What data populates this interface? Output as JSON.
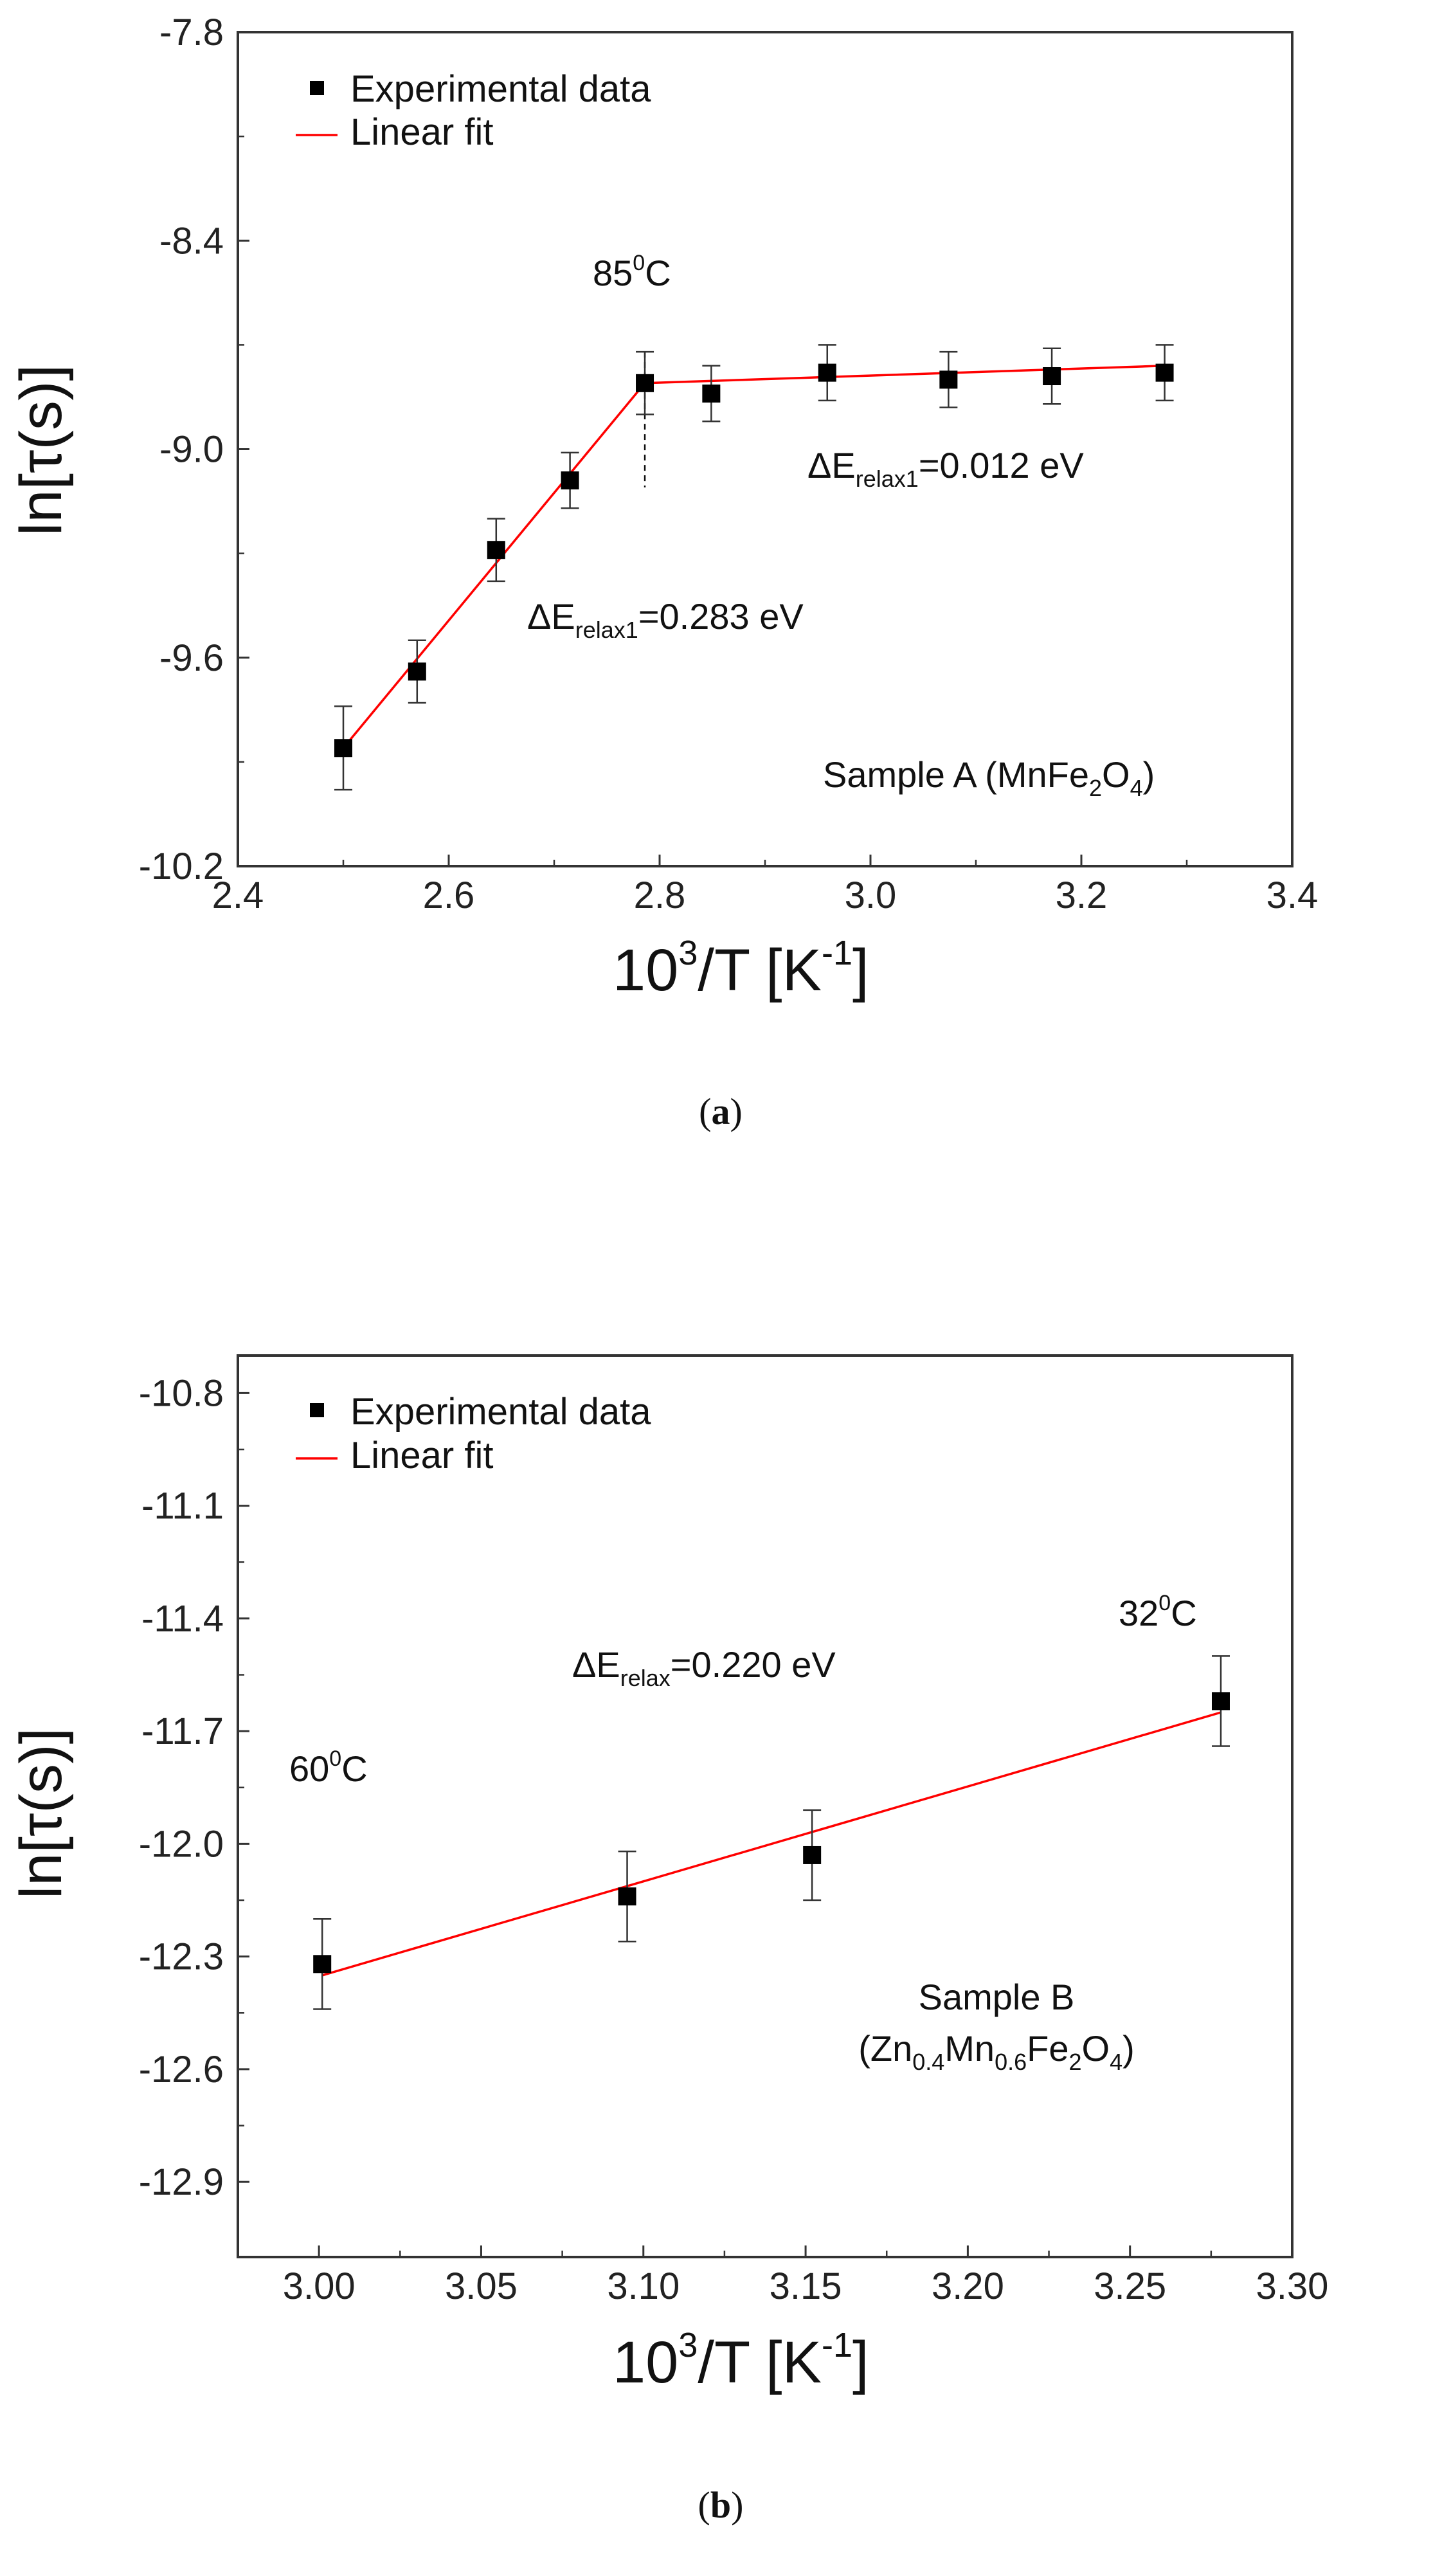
{
  "chart_data": [
    {
      "type": "scatter",
      "panel_label": "a",
      "xlabel": {
        "base": "10",
        "sup": "3",
        "rest": "/T [K",
        "sup2": "-1",
        "end": "]"
      },
      "ylabel": "ln[τ(s)]",
      "xlim": [
        2.4,
        3.4
      ],
      "ylim": [
        -10.2,
        -7.8
      ],
      "xticks": [
        "2.4",
        "2.6",
        "2.8",
        "3.0",
        "3.2",
        "3.4"
      ],
      "yticks": [
        "-7.8",
        "-8.4",
        "-9.0",
        "-9.6",
        "-10.2"
      ],
      "legend": {
        "position": "top-left",
        "data_label": "Experimental data",
        "fit_label": "Linear fit"
      },
      "series": [
        {
          "name": "Experimental data",
          "x": [
            2.5,
            2.57,
            2.645,
            2.715,
            2.786,
            2.849,
            2.959,
            3.074,
            3.172,
            3.279
          ],
          "y": [
            -9.86,
            -9.64,
            -9.29,
            -9.09,
            -8.81,
            -8.84,
            -8.78,
            -8.8,
            -8.79,
            -8.78
          ],
          "err": [
            0.12,
            0.09,
            0.09,
            0.08,
            0.09,
            0.08,
            0.08,
            0.08,
            0.08,
            0.08
          ]
        }
      ],
      "fits": [
        {
          "name": "Linear fit",
          "x": [
            2.5,
            2.786
          ],
          "y": [
            -9.86,
            -8.81
          ]
        },
        {
          "name": "Linear fit",
          "x": [
            2.786,
            3.279
          ],
          "y": [
            -8.81,
            -8.76
          ]
        }
      ],
      "vline": {
        "x": 2.786,
        "y_from": -8.72,
        "y_to": -9.11,
        "label": "85",
        "label_sup": "0",
        "label_end": "C"
      },
      "annotations": [
        {
          "pre": "ΔE",
          "sub": "relax1",
          "post": "=0.012 eV"
        },
        {
          "pre": "ΔE",
          "sub": "relax1",
          "post": "=0.283 eV"
        }
      ],
      "sample_label": {
        "pre": "Sample A (MnFe",
        "sub1": "2",
        "mid": "O",
        "sub2": "4",
        "post": ")"
      },
      "caption": "a"
    },
    {
      "type": "scatter",
      "panel_label": "b",
      "xlabel": {
        "base": "10",
        "sup": "3",
        "rest": "/T [K",
        "sup2": "-1",
        "end": "]"
      },
      "ylabel": "ln[τ(s)]",
      "xlim": [
        2.975,
        3.3
      ],
      "ylim": [
        -13.1,
        -10.7
      ],
      "xticks": [
        "3.00",
        "3.05",
        "3.10",
        "3.15",
        "3.20",
        "3.25",
        "3.30"
      ],
      "yticks": [
        "-10.8",
        "-11.1",
        "-11.4",
        "-11.7",
        "-12.0",
        "-12.3",
        "-12.6",
        "-12.9"
      ],
      "legend": {
        "position": "top-left",
        "data_label": "Experimental data",
        "fit_label": "Linear fit"
      },
      "series": [
        {
          "name": "Experimental data",
          "x": [
            3.001,
            3.095,
            3.152,
            3.278
          ],
          "y": [
            -12.32,
            -12.14,
            -12.03,
            -11.62
          ],
          "err": [
            0.12,
            0.12,
            0.12,
            0.12
          ]
        }
      ],
      "fits": [
        {
          "name": "Linear fit",
          "x": [
            3.001,
            3.278
          ],
          "y": [
            -12.35,
            -11.65
          ]
        }
      ],
      "annotations": [
        {
          "pre": "ΔE",
          "sub": "relax",
          "post": "=0.220 eV"
        }
      ],
      "temp_labels": [
        {
          "value": "60",
          "sup": "0",
          "end": "C"
        },
        {
          "value": "32",
          "sup": "0",
          "end": "C"
        }
      ],
      "sample_label": {
        "line1": "Sample B",
        "pre": "(Zn",
        "sub1": "0.4",
        "m1": "Mn",
        "sub2": "0.6",
        "m2": "Fe",
        "sub3": "2",
        "m3": "O",
        "sub4": "4",
        "post": ")"
      },
      "caption": "b"
    }
  ]
}
